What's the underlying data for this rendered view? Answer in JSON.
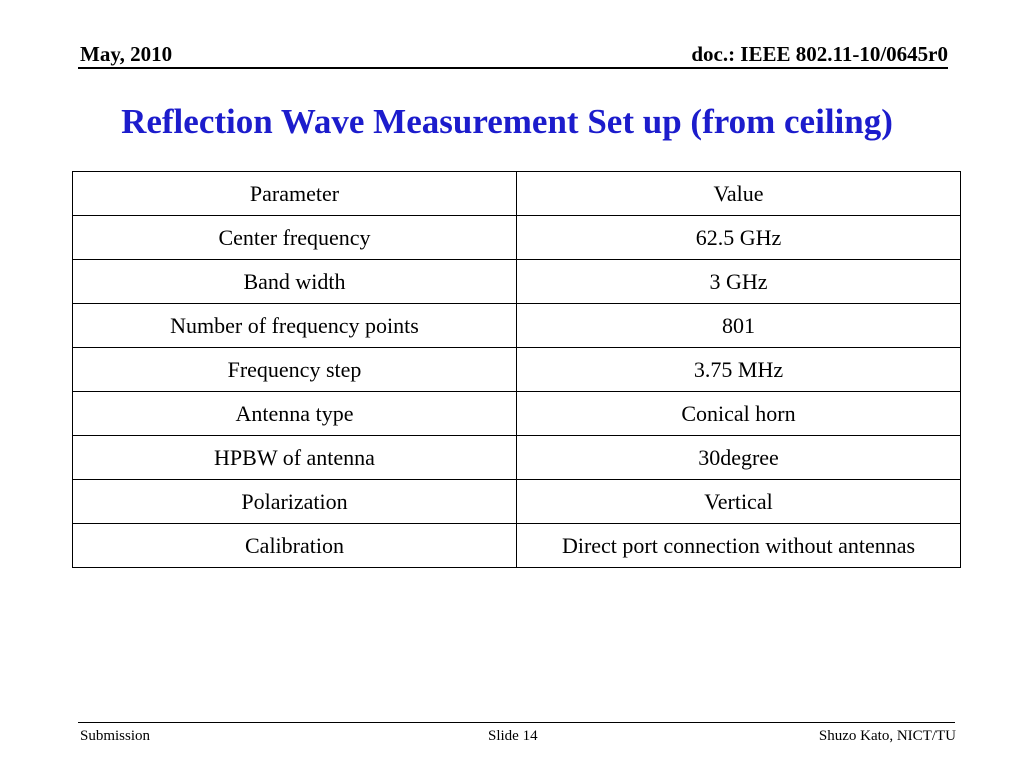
{
  "header": {
    "date": "May, 2010",
    "doc": "doc.: IEEE 802.11-10/0645r0"
  },
  "title": "Reflection Wave Measurement Set up (from ceiling)",
  "table": {
    "header": [
      "Parameter",
      "Value"
    ],
    "rows": [
      [
        "Center frequency",
        "62.5 GHz"
      ],
      [
        "Band width",
        "3 GHz"
      ],
      [
        "Number of frequency points",
        "801"
      ],
      [
        "Frequency step",
        "3.75 MHz"
      ],
      [
        "Antenna type",
        "Conical horn"
      ],
      [
        "HPBW of antenna",
        "30degree"
      ],
      [
        "Polarization",
        "Vertical"
      ],
      [
        "Calibration",
        "Direct port connection without antennas"
      ]
    ]
  },
  "footer": {
    "left": "Submission",
    "center": "Slide 14",
    "right": "Shuzo Kato, NICT/TU"
  }
}
